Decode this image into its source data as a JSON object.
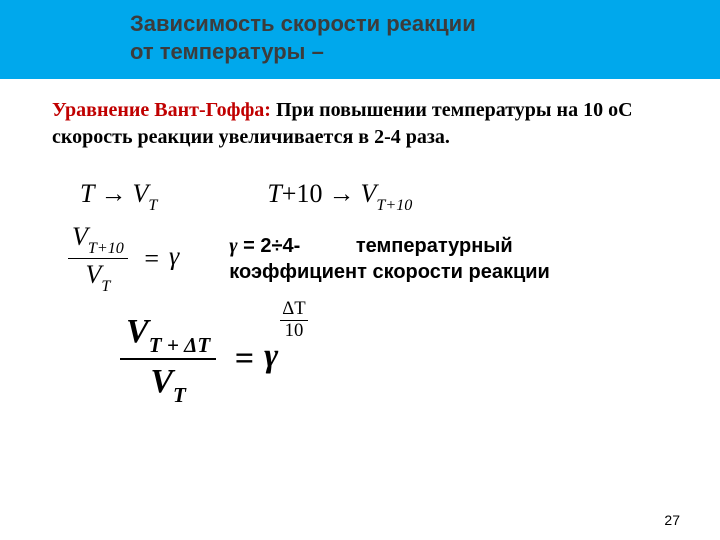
{
  "header": {
    "line1": "Зависимость скорости реакции",
    "line2": "от температуры –"
  },
  "intro": {
    "red": "Уравнение Вант-Гоффа:",
    "black": " При повышении температуры на 10 оС скорость реакции увеличивается   в 2-4 раза."
  },
  "formula1": {
    "T": "T",
    "arrow": "→",
    "V": "V",
    "sub": "T"
  },
  "formula2": {
    "lhs": "T",
    "plus": "+10",
    "arrow": "→",
    "V": "V",
    "sub": "T+10"
  },
  "formula3": {
    "num_V": "V",
    "num_sub": "T+10",
    "den_V": "V",
    "den_sub": "T",
    "eq": "=",
    "rhs": "γ"
  },
  "gamma_note": {
    "g": "γ",
    "eq_part": " = 2÷4-",
    "rest": "температурный коэффициент скорости реакции"
  },
  "formula4": {
    "num_V": "V",
    "num_sub": "T + ΔT",
    "den_V": "V",
    "den_sub": "T",
    "eq": "=",
    "base": "γ",
    "exp_num": "ΔT",
    "exp_den": "10"
  },
  "page_number": "27",
  "colors": {
    "header_bg": "#00a8ec",
    "header_text": "#3c3c3c",
    "red_text": "#c00000",
    "body_text": "#000000",
    "background": "#ffffff"
  }
}
